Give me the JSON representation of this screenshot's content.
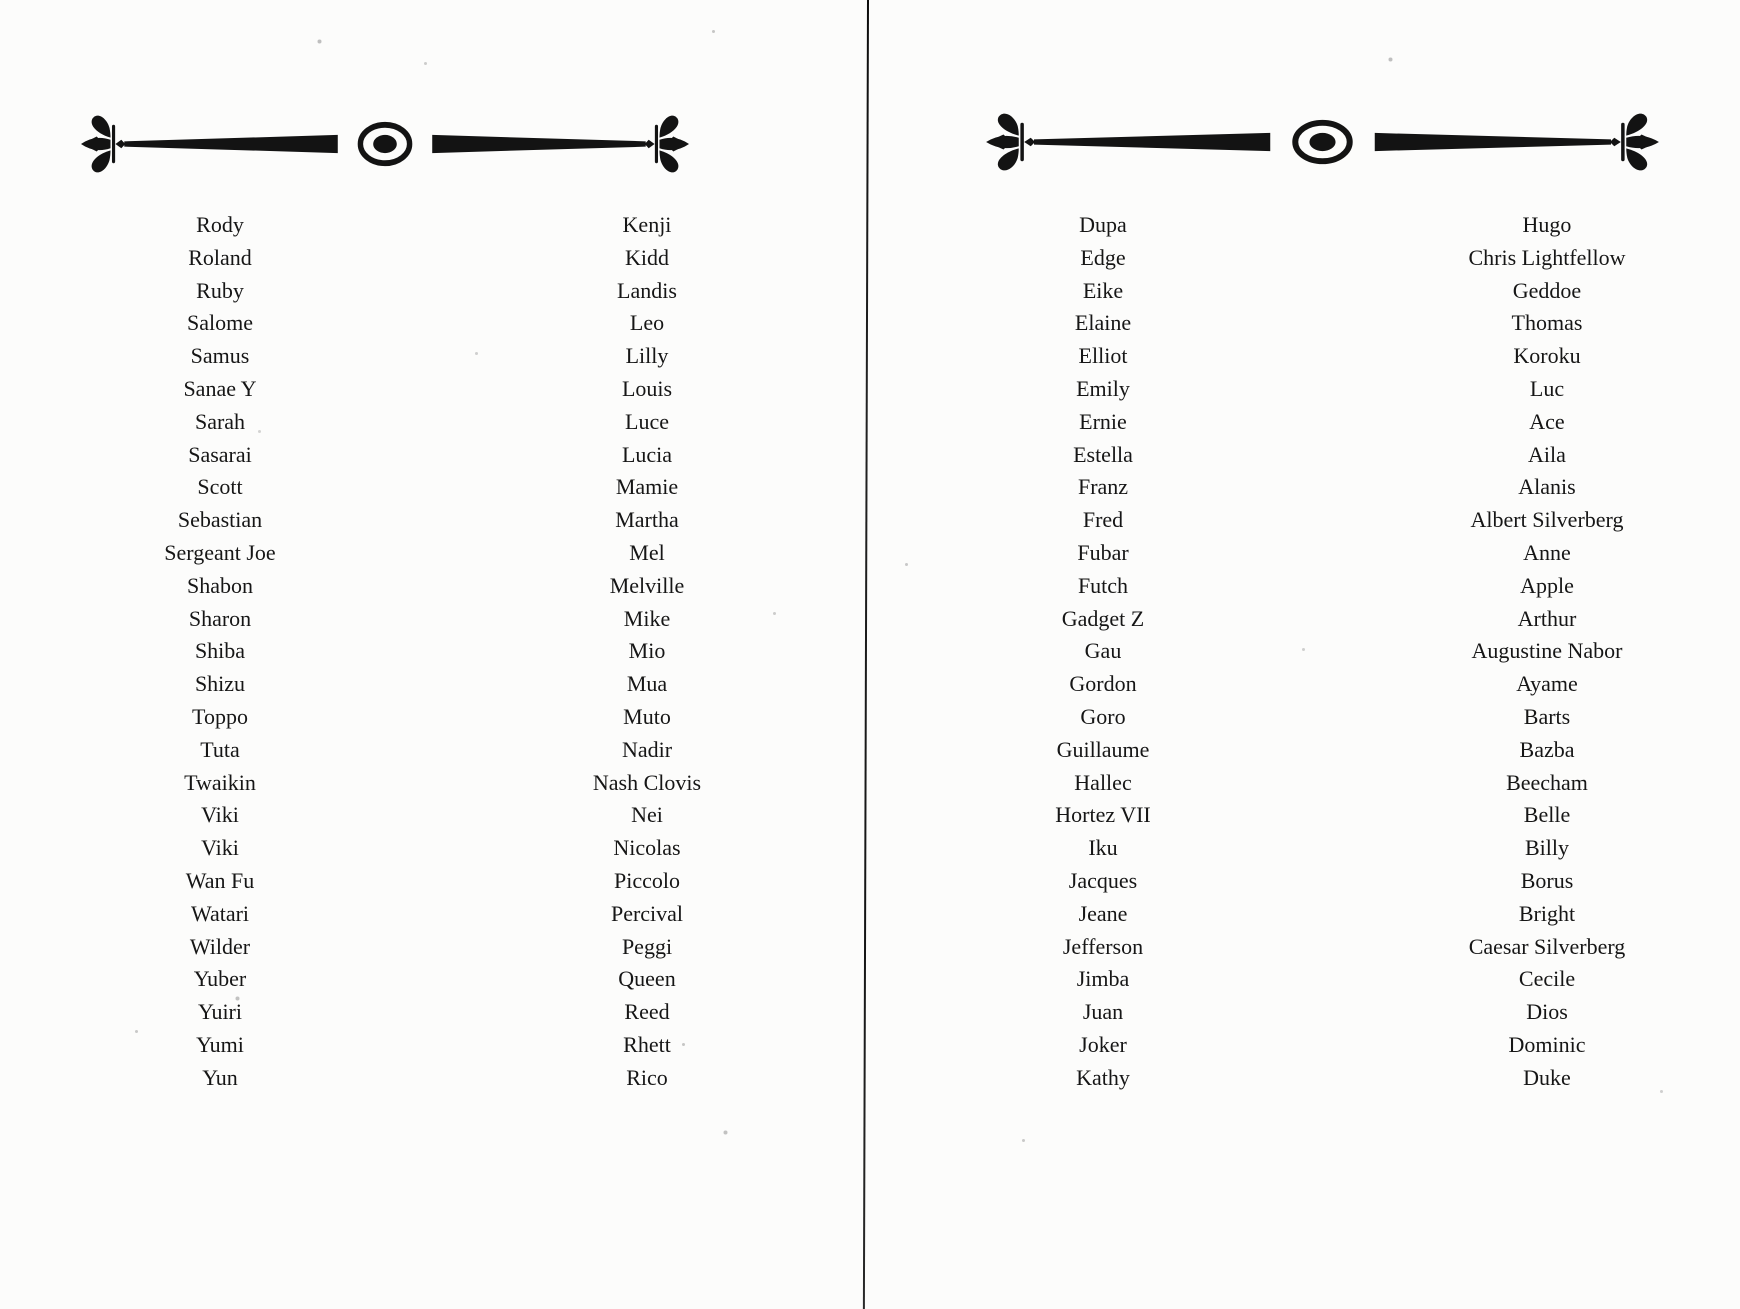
{
  "document": {
    "paper_color": "#fcfcfb",
    "ink_color": "#131313",
    "divider_icon": "fleur-de-lis-rule-with-center-medallion"
  },
  "left_page": {
    "column1": [
      "Rody",
      "Roland",
      "Ruby",
      "Salome",
      "Samus",
      "Sanae Y",
      "Sarah",
      "Sasarai",
      "Scott",
      "Sebastian",
      "Sergeant Joe",
      "Shabon",
      "Sharon",
      "Shiba",
      "Shizu",
      "Toppo",
      "Tuta",
      "Twaikin",
      "Viki",
      "Viki",
      "Wan Fu",
      "Watari",
      "Wilder",
      "Yuber",
      "Yuiri",
      "Yumi",
      "Yun"
    ],
    "column2": [
      "Kenji",
      "Kidd",
      "Landis",
      "Leo",
      "Lilly",
      "Louis",
      "Luce",
      "Lucia",
      "Mamie",
      "Martha",
      "Mel",
      "Melville",
      "Mike",
      "Mio",
      "Mua",
      "Muto",
      "Nadir",
      "Nash Clovis",
      "Nei",
      "Nicolas",
      "Piccolo",
      "Percival",
      "Peggi",
      "Queen",
      "Reed",
      "Rhett",
      "Rico"
    ]
  },
  "right_page": {
    "column1": [
      "Dupa",
      "Edge",
      "Eike",
      "Elaine",
      "Elliot",
      "Emily",
      "Ernie",
      "Estella",
      "Franz",
      "Fred",
      "Fubar",
      "Futch",
      "Gadget Z",
      "Gau",
      "Gordon",
      "Goro",
      "Guillaume",
      "Hallec",
      "Hortez VII",
      "Iku",
      "Jacques",
      "Jeane",
      "Jefferson",
      "Jimba",
      "Juan",
      "Joker",
      "Kathy"
    ],
    "column2": [
      "Hugo",
      "Chris Lightfellow",
      "Geddoe",
      "Thomas",
      "Koroku",
      "Luc",
      "Ace",
      "Aila",
      "Alanis",
      "Albert Silverberg",
      "Anne",
      "Apple",
      "Arthur",
      "Augustine Nabor",
      "Ayame",
      "Barts",
      "Bazba",
      "Beecham",
      "Belle",
      "Billy",
      "Borus",
      "Bright",
      "Caesar Silverberg",
      "Cecile",
      "Dios",
      "Dominic",
      "Duke"
    ]
  }
}
